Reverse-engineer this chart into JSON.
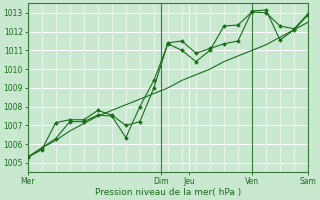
{
  "title": "",
  "xlabel": "Pression niveau de la mer( hPa )",
  "bg_color": "#c8e8d0",
  "grid_color": "#ffffff",
  "line_color": "#1a6b1a",
  "dark_line_color": "#2d5a1e",
  "ylim": [
    1004.5,
    1013.5
  ],
  "xlim": [
    0,
    120
  ],
  "yticks": [
    1005,
    1006,
    1007,
    1008,
    1009,
    1010,
    1011,
    1012,
    1013
  ],
  "xtick_positions": [
    0,
    60,
    72,
    96,
    120
  ],
  "xtick_labels": [
    "Mer",
    "Dim Jeu",
    "",
    "Ven",
    "Sam"
  ],
  "vline_positions": [
    60,
    96,
    120
  ],
  "series1_x": [
    0,
    6,
    12,
    18,
    24,
    30,
    36,
    42,
    48,
    54,
    60,
    66,
    72,
    78,
    84,
    90,
    96,
    102,
    108,
    114,
    120
  ],
  "series1_y": [
    1005.3,
    1005.8,
    1006.2,
    1006.7,
    1007.1,
    1007.5,
    1007.8,
    1008.1,
    1008.4,
    1008.7,
    1009.0,
    1009.4,
    1009.7,
    1010.0,
    1010.4,
    1010.7,
    1011.0,
    1011.3,
    1011.7,
    1012.1,
    1012.5
  ],
  "series2_x": [
    0,
    6,
    12,
    18,
    24,
    30,
    36,
    42,
    48,
    54,
    60,
    66,
    72,
    78,
    84,
    90,
    96,
    102,
    108,
    114,
    120
  ],
  "series2_y": [
    1005.3,
    1005.7,
    1007.15,
    1007.3,
    1007.3,
    1007.8,
    1007.55,
    1007.0,
    1007.2,
    1009.0,
    1011.4,
    1011.5,
    1010.85,
    1011.1,
    1011.35,
    1011.5,
    1013.1,
    1013.15,
    1011.55,
    1012.1,
    1012.9
  ],
  "series3_x": [
    0,
    6,
    12,
    18,
    24,
    30,
    36,
    42,
    48,
    54,
    60,
    66,
    72,
    78,
    84,
    90,
    96,
    102,
    108,
    114,
    120
  ],
  "series3_y": [
    1005.3,
    1005.8,
    1006.3,
    1007.2,
    1007.2,
    1007.55,
    1007.5,
    1006.35,
    1008.0,
    1009.4,
    1011.35,
    1011.0,
    1010.4,
    1011.0,
    1012.3,
    1012.35,
    1013.05,
    1013.0,
    1012.3,
    1012.15,
    1012.95
  ]
}
